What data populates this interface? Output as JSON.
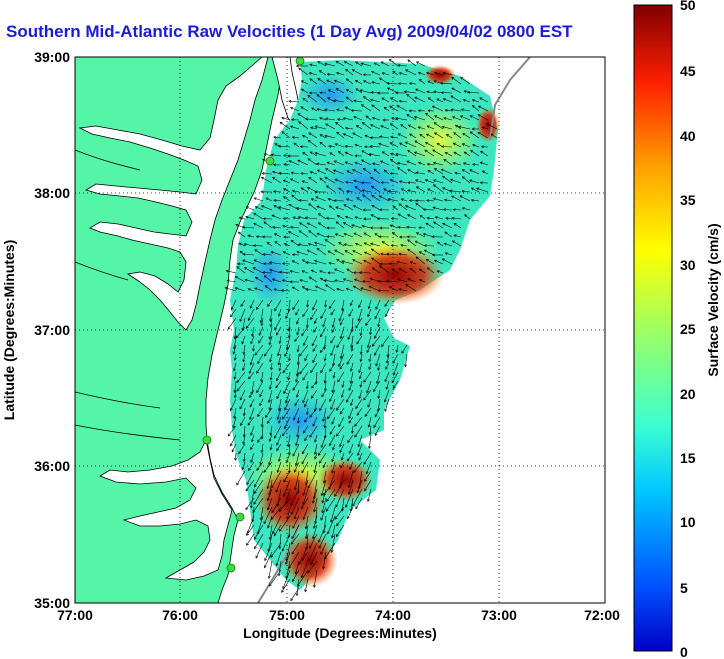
{
  "title": "Southern Mid-Atlantic Raw Velocities (1 Day Avg) 2009/04/02 0800 EST",
  "map": {
    "xlabel": "Longitude (Degrees:Minutes)",
    "ylabel": "Latitude (Degrees:Minutes)",
    "x_ticks": [
      "77:00",
      "76:00",
      "75:00",
      "74:00",
      "73:00",
      "72:00"
    ],
    "y_ticks": [
      "39:00",
      "38:00",
      "37:00",
      "36:00",
      "35:00"
    ],
    "grid": "dotted",
    "land_color": "#55f5a8",
    "ocean_color": "#ffffff",
    "station_color": "#3ddc3d"
  },
  "colorbar": {
    "label": "Surface Velocity (cm/s)",
    "ticks": [
      "50",
      "45",
      "40",
      "35",
      "30",
      "25",
      "20",
      "15",
      "10",
      "5",
      "0"
    ],
    "range": [
      0,
      50
    ],
    "colormap": "jet"
  }
}
